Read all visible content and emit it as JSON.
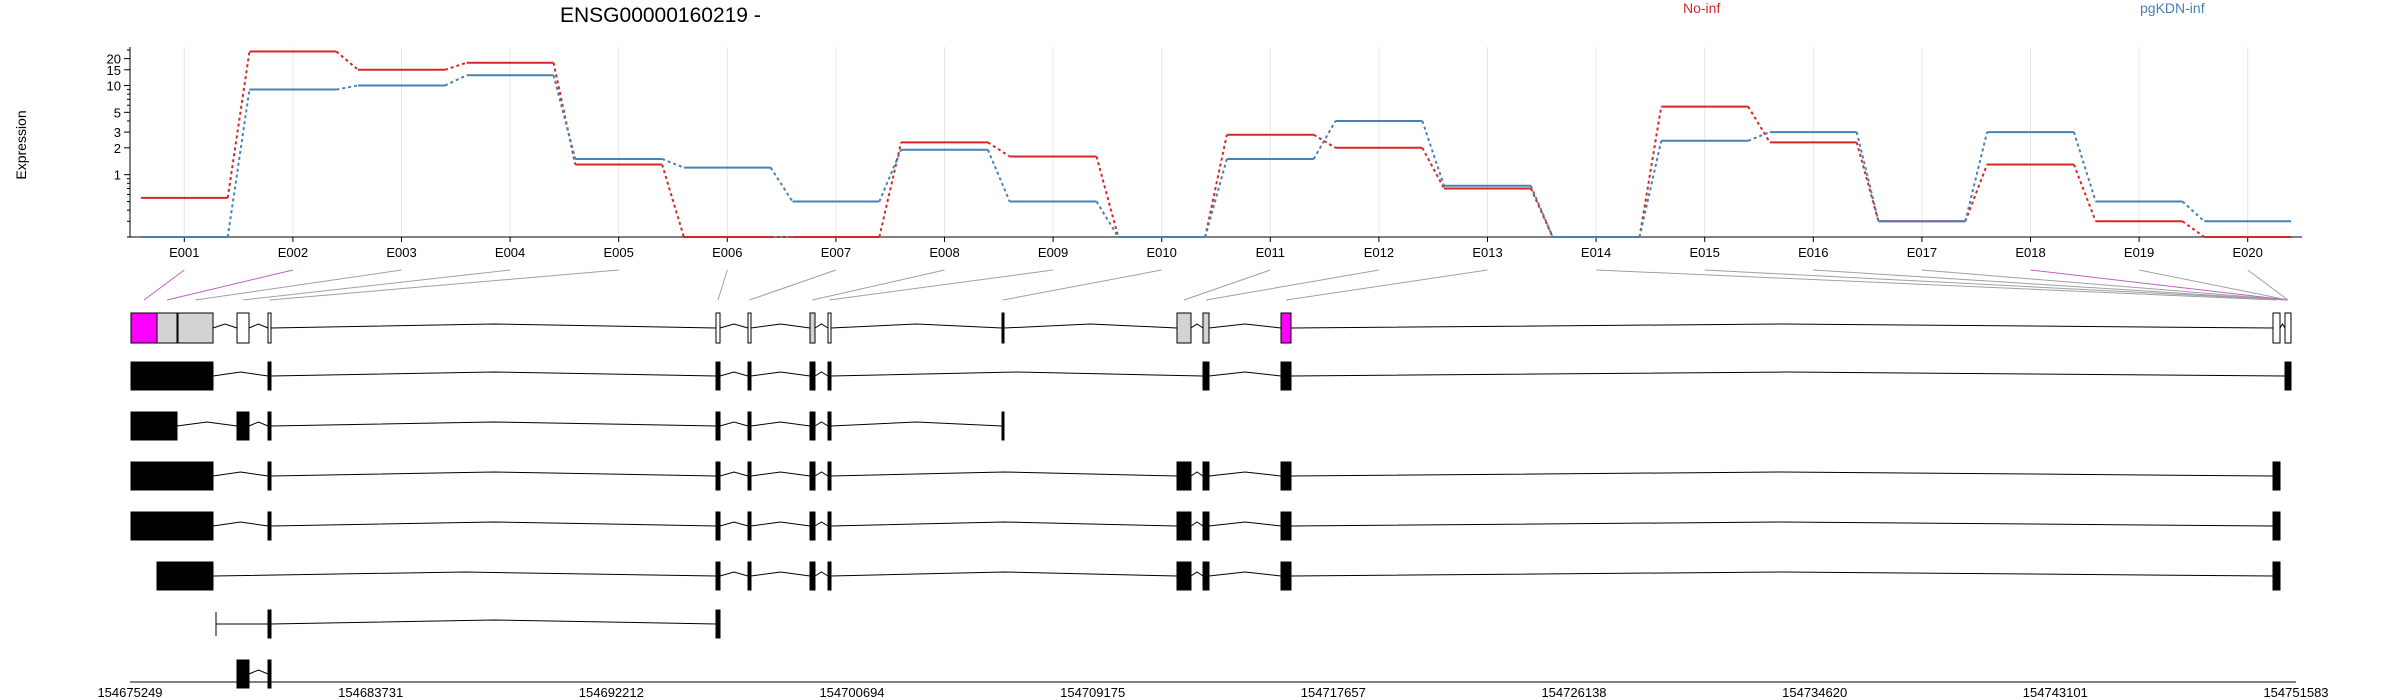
{
  "chart_data": {
    "type": "line",
    "title": "ENSG00000160219 -",
    "ylabel": "Expression",
    "xlabel": "",
    "y_scale": "log",
    "ylim": [
      0.2,
      27
    ],
    "y_ticks": [
      1,
      2,
      3,
      5,
      10,
      15,
      20
    ],
    "grid": "vertical",
    "legend_placement": "top",
    "categories": [
      "E001",
      "E002",
      "E003",
      "E004",
      "E005",
      "E006",
      "E007",
      "E008",
      "E009",
      "E010",
      "E011",
      "E012",
      "E013",
      "E014",
      "E015",
      "E016",
      "E017",
      "E018",
      "E019",
      "E020"
    ],
    "series": [
      {
        "name": "No-inf",
        "color": "#d62728",
        "values": [
          0.55,
          24,
          15,
          18,
          1.3,
          0.2,
          0.2,
          2.3,
          1.6,
          0.2,
          2.8,
          2.0,
          0.7,
          0.2,
          5.8,
          2.3,
          0.3,
          1.3,
          0.3,
          0.2
        ]
      },
      {
        "name": "pgKDN-inf",
        "color": "#4682b4",
        "values": [
          0.2,
          9,
          10,
          13,
          1.5,
          1.2,
          0.5,
          1.9,
          0.5,
          0.2,
          1.5,
          4.0,
          0.75,
          0.2,
          2.4,
          3.0,
          0.3,
          3.0,
          0.5,
          0.3
        ]
      }
    ],
    "genome_axis_labels": [
      "154675249",
      "154683731",
      "154692212",
      "154700694",
      "154709175",
      "154717657",
      "154726138",
      "154734620",
      "154743101",
      "154751583"
    ]
  },
  "colors": {
    "exon_gray": "#d3d3d3",
    "exon_highlight": "#ff00ff",
    "exon_black": "#000000",
    "connector_gray": "#a0a0a0",
    "connector_purple": "#c060c0"
  }
}
